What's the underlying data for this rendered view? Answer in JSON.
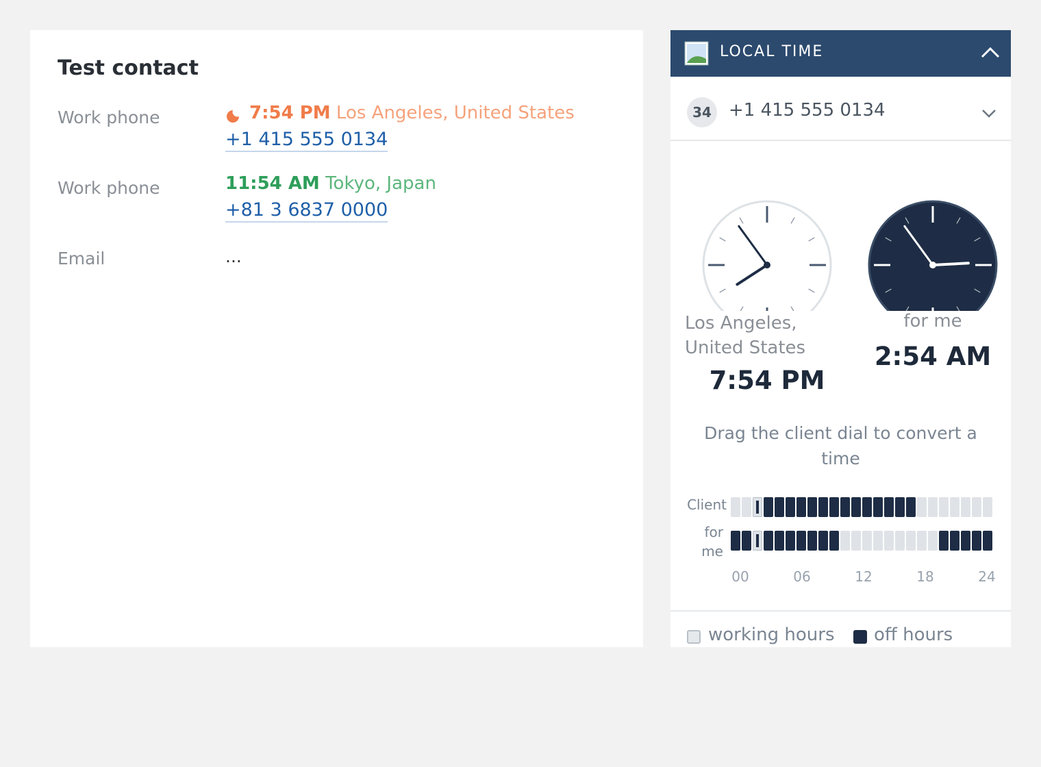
{
  "contact": {
    "title": "Test contact",
    "fields": [
      {
        "label": "Work phone",
        "time": "7:54 PM",
        "location": "Los Angeles, United States",
        "phone": "+1 415 555 0134"
      },
      {
        "label": "Work phone",
        "time": "11:54 AM",
        "location": "Tokyo, Japan",
        "phone": "+81 3 6837 0000"
      },
      {
        "label": "Email",
        "value": "..."
      }
    ]
  },
  "local_time": {
    "title": "LOCAL TIME",
    "badge": "34",
    "phone": "+1 415 555 0134",
    "client": {
      "location_line1": "Los Angeles,",
      "location_line2": "United States",
      "time": "7:54 PM"
    },
    "me": {
      "label": "for me",
      "time": "2:54 AM"
    },
    "hint": "Drag the client dial to convert a time",
    "rows": [
      {
        "label": "Client",
        "off": [
          false,
          false,
          false,
          true,
          true,
          true,
          true,
          true,
          true,
          true,
          true,
          true,
          true,
          true,
          true,
          true,
          true,
          false,
          false,
          false,
          false,
          false,
          false,
          false
        ]
      },
      {
        "label_line1": "for",
        "label_line2": "me",
        "off": [
          true,
          true,
          false,
          true,
          true,
          true,
          true,
          true,
          true,
          true,
          false,
          false,
          false,
          false,
          false,
          false,
          false,
          false,
          false,
          true,
          true,
          true,
          true,
          true
        ]
      }
    ],
    "axis": [
      "00",
      "06",
      "12",
      "18",
      "24"
    ],
    "legend": [
      "working hours",
      "off hours"
    ]
  }
}
